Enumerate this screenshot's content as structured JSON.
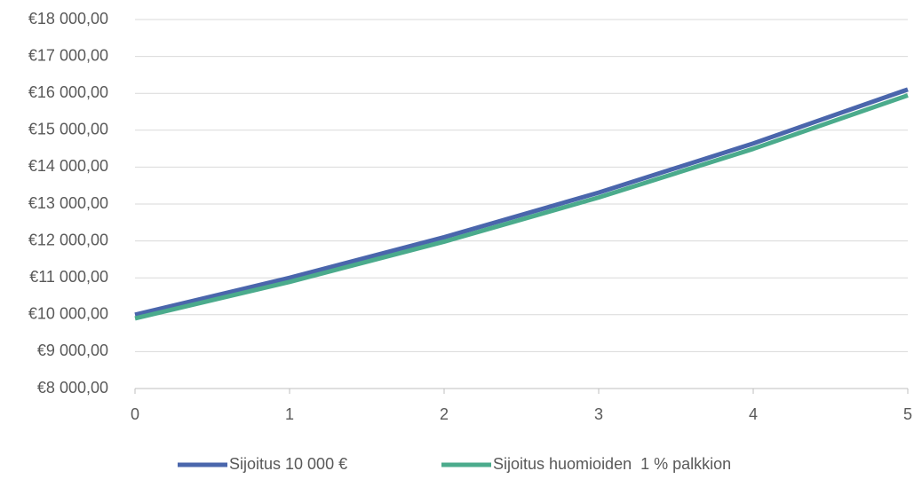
{
  "chart_data": {
    "type": "line",
    "x": [
      0,
      1,
      2,
      3,
      4,
      5
    ],
    "series": [
      {
        "name": "Sijoitus 10 000 €",
        "color": "#4a66ac",
        "values": [
          10000,
          11000,
          12100,
          13310,
          14641,
          16105
        ]
      },
      {
        "name": "Sijoitus huomioiden  1 % palkkion",
        "color": "#4bab8c",
        "values": [
          9900,
          10890,
          11979,
          13177,
          14495,
          15944
        ]
      }
    ],
    "xlim": [
      0,
      5
    ],
    "xticks": [
      0,
      1,
      2,
      3,
      4,
      5
    ],
    "ylim": [
      8000,
      18000
    ],
    "yticks": [
      {
        "value": 8000,
        "label": "€8 000,00"
      },
      {
        "value": 9000,
        "label": "€9 000,00"
      },
      {
        "value": 10000,
        "label": "€10 000,00"
      },
      {
        "value": 11000,
        "label": "€11 000,00"
      },
      {
        "value": 12000,
        "label": "€12 000,00"
      },
      {
        "value": 13000,
        "label": "€13 000,00"
      },
      {
        "value": 14000,
        "label": "€14 000,00"
      },
      {
        "value": 15000,
        "label": "€15 000,00"
      },
      {
        "value": 16000,
        "label": "€16 000,00"
      },
      {
        "value": 17000,
        "label": "€17 000,00"
      },
      {
        "value": 18000,
        "label": "€18 000,00"
      }
    ],
    "grid": true,
    "legend": "bottom"
  }
}
